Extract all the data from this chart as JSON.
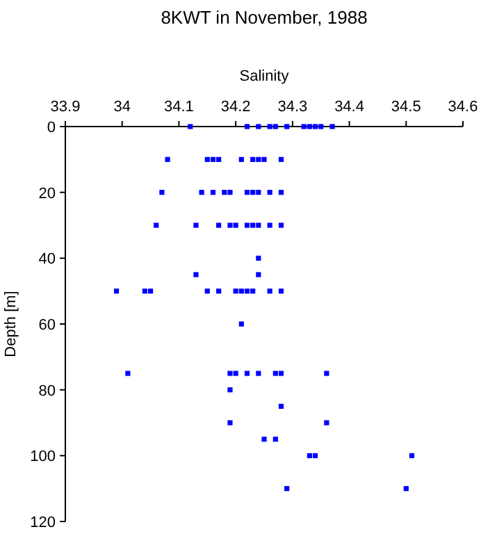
{
  "chart_data": {
    "type": "scatter",
    "title": "8KWT in November, 1988",
    "xlabel": "Salinity",
    "ylabel": "Depth [m]",
    "xlim": [
      33.9,
      34.6
    ],
    "xticks": [
      33.9,
      34,
      34.1,
      34.2,
      34.3,
      34.4,
      34.5,
      34.6
    ],
    "ylim": [
      120,
      0
    ],
    "yticks": [
      0,
      20,
      40,
      60,
      80,
      100,
      120
    ],
    "marker": "square",
    "series": [
      {
        "color": "#0000ff",
        "x": [
          34.12,
          34.22,
          34.24,
          34.26,
          34.27,
          34.29,
          34.32,
          34.33,
          34.34,
          34.35,
          34.37,
          34.08,
          34.15,
          34.16,
          34.17,
          34.21,
          34.23,
          34.24,
          34.25,
          34.28,
          34.07,
          34.14,
          34.16,
          34.18,
          34.19,
          34.22,
          34.23,
          34.24,
          34.26,
          34.28,
          34.06,
          34.13,
          34.17,
          34.19,
          34.2,
          34.22,
          34.23,
          34.24,
          34.26,
          34.28,
          34.24,
          34.13,
          34.24,
          33.99,
          34.04,
          34.05,
          34.15,
          34.17,
          34.2,
          34.21,
          34.22,
          34.23,
          34.26,
          34.28,
          34.21,
          34.01,
          34.19,
          34.2,
          34.22,
          34.24,
          34.27,
          34.28,
          34.36,
          34.19,
          34.28,
          34.19,
          34.36,
          34.25,
          34.27,
          34.33,
          34.34,
          34.51,
          34.29,
          34.5
        ],
        "values": [
          0,
          0,
          0,
          0,
          0,
          0,
          0,
          0,
          0,
          0,
          0,
          10,
          10,
          10,
          10,
          10,
          10,
          10,
          10,
          10,
          20,
          20,
          20,
          20,
          20,
          20,
          20,
          20,
          20,
          20,
          30,
          30,
          30,
          30,
          30,
          30,
          30,
          30,
          30,
          30,
          40,
          45,
          45,
          50,
          50,
          50,
          50,
          50,
          50,
          50,
          50,
          50,
          50,
          50,
          60,
          75,
          75,
          75,
          75,
          75,
          75,
          75,
          75,
          80,
          85,
          90,
          90,
          95,
          95,
          100,
          100,
          100,
          110,
          110
        ]
      }
    ]
  }
}
